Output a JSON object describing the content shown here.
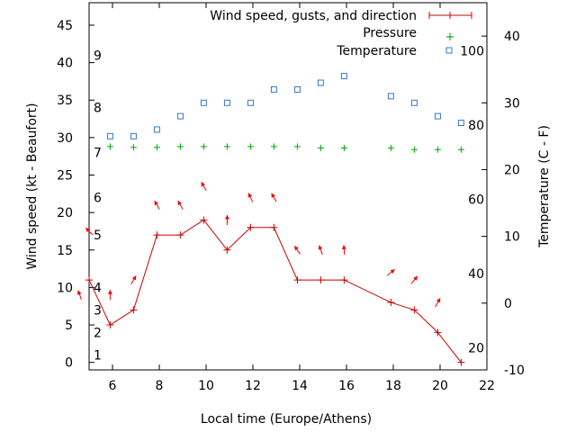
{
  "chart_data": {
    "type": "line",
    "xlabel": "Local time (Europe/Athens)",
    "ylabel_left": "Wind speed (kt - Beaufort)",
    "ylabel_right": "Temperature (C - F)",
    "xlim": [
      5,
      22
    ],
    "xticks": [
      "6",
      "8",
      "10",
      "12",
      "14",
      "16",
      "18",
      "20",
      "22"
    ],
    "ylim_left": [
      -1,
      48
    ],
    "yticks_left": [
      "0",
      "5",
      "10",
      "15",
      "20",
      "25",
      "30",
      "35",
      "40",
      "45"
    ],
    "ylim_right_c": [
      -10,
      45
    ],
    "yticks_right_c": [
      "-10",
      "0",
      "10",
      "20",
      "30",
      "40"
    ],
    "beaufort_labels": [
      {
        "label": "1",
        "kt": 1
      },
      {
        "label": "2",
        "kt": 4
      },
      {
        "label": "3",
        "kt": 7
      },
      {
        "label": "4",
        "kt": 10
      },
      {
        "label": "5",
        "kt": 17
      },
      {
        "label": "6",
        "kt": 22
      },
      {
        "label": "7",
        "kt": 28
      },
      {
        "label": "8",
        "kt": 34
      },
      {
        "label": "9",
        "kt": 41
      }
    ],
    "fahrenheit_labels": [
      {
        "label": "20",
        "f": 20
      },
      {
        "label": "40",
        "f": 40
      },
      {
        "label": "60",
        "f": 60
      },
      {
        "label": "80",
        "f": 80
      },
      {
        "label": "100",
        "f": 100
      }
    ],
    "legend_position": "top-right",
    "series": [
      {
        "name": "Wind speed, gusts, and direction",
        "color": "#cc0000",
        "x": [
          5,
          5.9,
          6.9,
          7.9,
          8.9,
          9.9,
          10.9,
          11.9,
          12.9,
          13.9,
          14.9,
          15.9,
          17.9,
          18.9,
          19.9,
          20.9
        ],
        "y": [
          11,
          5,
          7,
          17,
          17,
          19,
          15,
          18,
          18,
          11,
          11,
          11,
          8,
          7,
          4,
          0
        ]
      },
      {
        "name": "Pressure",
        "color": "#00aa00",
        "x": [
          5.9,
          6.9,
          7.9,
          8.9,
          9.9,
          10.9,
          11.9,
          12.9,
          13.9,
          14.9,
          15.9,
          17.9,
          18.9,
          19.9,
          20.9
        ],
        "y": [
          28.8,
          28.7,
          28.7,
          28.8,
          28.8,
          28.8,
          28.8,
          28.8,
          28.8,
          28.6,
          28.6,
          28.6,
          28.4,
          28.4,
          28.4
        ]
      },
      {
        "name": "Temperature",
        "color": "#3377cc",
        "x": [
          5.9,
          6.9,
          7.9,
          8.9,
          9.9,
          10.9,
          11.9,
          12.9,
          13.9,
          14.9,
          15.9,
          17.9,
          18.9,
          19.9,
          20.9
        ],
        "y": [
          25,
          25,
          26,
          28,
          30,
          30,
          30,
          32,
          32,
          33,
          34,
          31,
          30,
          28,
          27
        ]
      }
    ],
    "wind_arrows": [
      {
        "x": 4.6,
        "kt": 9,
        "dir": 160
      },
      {
        "x": 5.9,
        "kt": 9,
        "dir": 180
      },
      {
        "x": 6.9,
        "kt": 11,
        "dir": 210
      },
      {
        "x": 7.9,
        "kt": 21,
        "dir": 150
      },
      {
        "x": 8.9,
        "kt": 21,
        "dir": 150
      },
      {
        "x": 9.9,
        "kt": 23.5,
        "dir": 150
      },
      {
        "x": 10.9,
        "kt": 19,
        "dir": 180
      },
      {
        "x": 11.9,
        "kt": 22,
        "dir": 155
      },
      {
        "x": 12.9,
        "kt": 22,
        "dir": 150
      },
      {
        "x": 13.9,
        "kt": 15,
        "dir": 145
      },
      {
        "x": 14.9,
        "kt": 15,
        "dir": 160
      },
      {
        "x": 15.9,
        "kt": 15,
        "dir": 175
      },
      {
        "x": 17.9,
        "kt": 12,
        "dir": 230
      },
      {
        "x": 18.9,
        "kt": 11,
        "dir": 220
      },
      {
        "x": 19.9,
        "kt": 8,
        "dir": 210
      },
      {
        "x": 5.0,
        "kt": 17.5,
        "dir": 135
      }
    ]
  }
}
